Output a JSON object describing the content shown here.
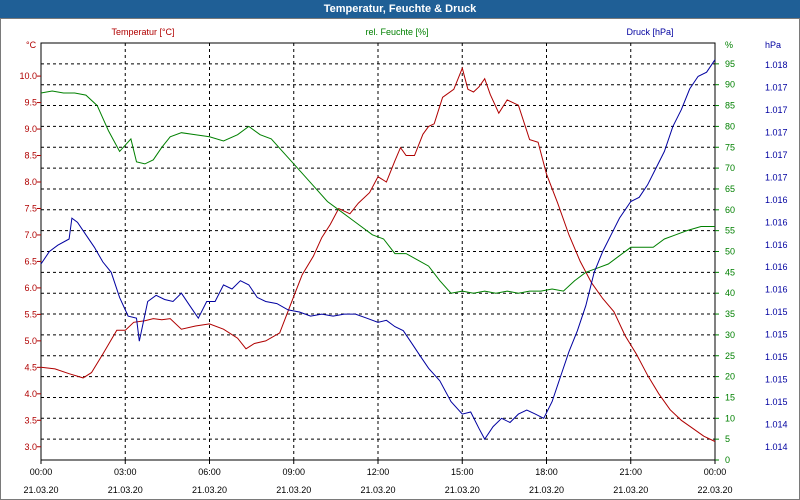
{
  "window": {
    "title": "Temperatur, Feuchte & Druck"
  },
  "chart_data": {
    "type": "line",
    "title": "Temperatur, Feuchte & Druck",
    "colors": {
      "temperature": "#b00000",
      "humidity": "#008000",
      "pressure": "#0000a0",
      "grid": "#000000"
    },
    "x_axis": {
      "type": "time",
      "range": [
        "21.03.20 00:00",
        "22.03.20 00:00"
      ],
      "ticks": [
        {
          "time": "00:00",
          "date": "21.03.20"
        },
        {
          "time": "03:00",
          "date": "21.03.20"
        },
        {
          "time": "06:00",
          "date": "21.03.20"
        },
        {
          "time": "09:00",
          "date": "21.03.20"
        },
        {
          "time": "12:00",
          "date": "21.03.20"
        },
        {
          "time": "15:00",
          "date": "21.03.20"
        },
        {
          "time": "18:00",
          "date": "21.03.20"
        },
        {
          "time": "21:00",
          "date": "21.03.20"
        },
        {
          "time": "00:00",
          "date": "22.03.20"
        }
      ]
    },
    "axes": {
      "temperature": {
        "label": "Temperatur [°C]",
        "unit_label": "°C",
        "ylim": [
          2.75,
          10.625
        ],
        "ticks": [
          "10.0",
          "9.5",
          "9.0",
          "8.5",
          "8.0",
          "7.5",
          "7.0",
          "6.5",
          "6.0",
          "5.5",
          "5.0",
          "4.5",
          "4.0",
          "3.5",
          "3.0"
        ],
        "tick_values": [
          10.0,
          9.5,
          9.0,
          8.5,
          8.0,
          7.5,
          7.0,
          6.5,
          6.0,
          5.5,
          5.0,
          4.5,
          4.0,
          3.5,
          3.0
        ]
      },
      "humidity": {
        "label": "rel. Feuchte [%]",
        "unit_label": "%",
        "ylim": [
          0,
          100
        ],
        "ticks": [
          "95",
          "90",
          "85",
          "80",
          "75",
          "70",
          "65",
          "60",
          "55",
          "50",
          "45",
          "40",
          "35",
          "30",
          "25",
          "20",
          "15",
          "10",
          "5",
          "0"
        ],
        "tick_values": [
          95,
          90,
          85,
          80,
          75,
          70,
          65,
          60,
          55,
          50,
          45,
          40,
          35,
          30,
          25,
          20,
          15,
          10,
          5,
          0
        ]
      },
      "pressure": {
        "label": "Druck [hPa]",
        "unit_label": "hPa",
        "ticks": [
          "1.018",
          "1.017",
          "1.017",
          "1.017",
          "1.017",
          "1.017",
          "1.016",
          "1.016",
          "1.016",
          "1.016",
          "1.016",
          "1.015",
          "1.015",
          "1.015",
          "1.015",
          "1.015",
          "1.014",
          "1.014"
        ]
      }
    },
    "series": [
      {
        "name": "Temperatur [°C]",
        "axis": "temperature",
        "color": "#b00000",
        "points": [
          [
            0,
            4.5
          ],
          [
            0.5,
            4.47
          ],
          [
            1.0,
            4.38
          ],
          [
            1.5,
            4.3
          ],
          [
            1.8,
            4.4
          ],
          [
            2.2,
            4.75
          ],
          [
            2.7,
            5.2
          ],
          [
            3.0,
            5.2
          ],
          [
            3.3,
            5.35
          ],
          [
            3.7,
            5.38
          ],
          [
            4.0,
            5.42
          ],
          [
            4.3,
            5.4
          ],
          [
            4.6,
            5.42
          ],
          [
            5.0,
            5.22
          ],
          [
            5.5,
            5.28
          ],
          [
            6.0,
            5.32
          ],
          [
            6.5,
            5.22
          ],
          [
            7.0,
            5.05
          ],
          [
            7.3,
            4.85
          ],
          [
            7.6,
            4.95
          ],
          [
            8.0,
            5.0
          ],
          [
            8.5,
            5.15
          ],
          [
            8.9,
            5.7
          ],
          [
            9.3,
            6.25
          ],
          [
            9.7,
            6.6
          ],
          [
            10.0,
            6.95
          ],
          [
            10.3,
            7.2
          ],
          [
            10.6,
            7.5
          ],
          [
            11.0,
            7.4
          ],
          [
            11.3,
            7.6
          ],
          [
            11.7,
            7.8
          ],
          [
            12.0,
            8.1
          ],
          [
            12.3,
            8.0
          ],
          [
            12.6,
            8.4
          ],
          [
            12.8,
            8.65
          ],
          [
            13.0,
            8.5
          ],
          [
            13.3,
            8.5
          ],
          [
            13.6,
            8.9
          ],
          [
            13.8,
            9.05
          ],
          [
            14.0,
            9.1
          ],
          [
            14.3,
            9.6
          ],
          [
            14.7,
            9.75
          ],
          [
            15.0,
            10.15
          ],
          [
            15.2,
            9.75
          ],
          [
            15.4,
            9.7
          ],
          [
            15.6,
            9.8
          ],
          [
            15.8,
            9.95
          ],
          [
            16.0,
            9.65
          ],
          [
            16.3,
            9.3
          ],
          [
            16.6,
            9.55
          ],
          [
            17.0,
            9.45
          ],
          [
            17.4,
            8.8
          ],
          [
            17.7,
            8.75
          ],
          [
            18.0,
            8.15
          ],
          [
            18.4,
            7.6
          ],
          [
            18.8,
            7.0
          ],
          [
            19.2,
            6.5
          ],
          [
            19.6,
            6.1
          ],
          [
            20.0,
            5.8
          ],
          [
            20.4,
            5.55
          ],
          [
            20.8,
            5.1
          ],
          [
            21.2,
            4.75
          ],
          [
            21.6,
            4.35
          ],
          [
            22.0,
            4.0
          ],
          [
            22.4,
            3.7
          ],
          [
            22.8,
            3.5
          ],
          [
            23.2,
            3.35
          ],
          [
            23.6,
            3.2
          ],
          [
            24.0,
            3.1
          ]
        ]
      },
      {
        "name": "rel. Feuchte [%]",
        "axis": "humidity",
        "color": "#008000",
        "points": [
          [
            0,
            88
          ],
          [
            0.4,
            88.5
          ],
          [
            0.8,
            88
          ],
          [
            1.2,
            88
          ],
          [
            1.6,
            87.5
          ],
          [
            2.0,
            85
          ],
          [
            2.4,
            79
          ],
          [
            2.8,
            74
          ],
          [
            3.2,
            77
          ],
          [
            3.4,
            71.5
          ],
          [
            3.7,
            71
          ],
          [
            4.0,
            72
          ],
          [
            4.3,
            75
          ],
          [
            4.6,
            77.5
          ],
          [
            5.0,
            78.5
          ],
          [
            5.5,
            78
          ],
          [
            6.0,
            77.5
          ],
          [
            6.5,
            76.5
          ],
          [
            7.0,
            78
          ],
          [
            7.4,
            80
          ],
          [
            7.8,
            78
          ],
          [
            8.2,
            77
          ],
          [
            8.6,
            74
          ],
          [
            9.0,
            71
          ],
          [
            9.4,
            68
          ],
          [
            9.8,
            65
          ],
          [
            10.2,
            62
          ],
          [
            10.6,
            60
          ],
          [
            11.0,
            58
          ],
          [
            11.4,
            56
          ],
          [
            11.8,
            54
          ],
          [
            12.2,
            53
          ],
          [
            12.6,
            49.5
          ],
          [
            13.0,
            49.5
          ],
          [
            13.4,
            48
          ],
          [
            13.8,
            46.5
          ],
          [
            14.2,
            43
          ],
          [
            14.6,
            40
          ],
          [
            15.0,
            40.5
          ],
          [
            15.4,
            40
          ],
          [
            15.8,
            40.5
          ],
          [
            16.2,
            40
          ],
          [
            16.6,
            40.5
          ],
          [
            17.0,
            40
          ],
          [
            17.4,
            40.5
          ],
          [
            17.8,
            40.5
          ],
          [
            18.2,
            41
          ],
          [
            18.6,
            40.5
          ],
          [
            19.0,
            43
          ],
          [
            19.4,
            45
          ],
          [
            19.8,
            46
          ],
          [
            20.2,
            47
          ],
          [
            20.6,
            49
          ],
          [
            21.0,
            51
          ],
          [
            21.4,
            51
          ],
          [
            21.8,
            51
          ],
          [
            22.2,
            53
          ],
          [
            22.6,
            54
          ],
          [
            23.0,
            55
          ],
          [
            23.5,
            56
          ],
          [
            24.0,
            56
          ]
        ]
      },
      {
        "name": "Druck [hPa]",
        "axis": "pressure",
        "color": "#0000a0",
        "points_rel": [
          [
            0,
            47
          ],
          [
            0.3,
            50
          ],
          [
            0.6,
            51.5
          ],
          [
            1.0,
            53
          ],
          [
            1.1,
            58
          ],
          [
            1.3,
            57
          ],
          [
            1.6,
            54
          ],
          [
            1.9,
            51
          ],
          [
            2.2,
            47.5
          ],
          [
            2.5,
            45
          ],
          [
            2.8,
            39
          ],
          [
            3.1,
            34.5
          ],
          [
            3.4,
            34
          ],
          [
            3.5,
            28.5
          ],
          [
            3.8,
            38
          ],
          [
            4.1,
            39.5
          ],
          [
            4.4,
            38.5
          ],
          [
            4.7,
            38
          ],
          [
            5.0,
            40
          ],
          [
            5.3,
            37
          ],
          [
            5.6,
            34
          ],
          [
            5.9,
            38
          ],
          [
            6.2,
            38
          ],
          [
            6.5,
            42
          ],
          [
            6.8,
            41
          ],
          [
            7.1,
            43
          ],
          [
            7.4,
            42
          ],
          [
            7.7,
            39
          ],
          [
            8.0,
            38
          ],
          [
            8.4,
            37.5
          ],
          [
            8.8,
            36
          ],
          [
            9.2,
            35.5
          ],
          [
            9.6,
            34.5
          ],
          [
            10.0,
            35
          ],
          [
            10.4,
            34.5
          ],
          [
            10.8,
            35
          ],
          [
            11.2,
            35
          ],
          [
            11.6,
            34
          ],
          [
            12.0,
            33
          ],
          [
            12.3,
            33.5
          ],
          [
            12.6,
            32
          ],
          [
            12.9,
            31
          ],
          [
            13.2,
            28
          ],
          [
            13.5,
            25
          ],
          [
            13.8,
            22
          ],
          [
            14.2,
            19
          ],
          [
            14.6,
            14
          ],
          [
            15.0,
            11
          ],
          [
            15.3,
            11.5
          ],
          [
            15.6,
            7.5
          ],
          [
            15.8,
            5
          ],
          [
            16.1,
            8
          ],
          [
            16.4,
            10
          ],
          [
            16.7,
            9
          ],
          [
            17.0,
            11
          ],
          [
            17.3,
            12
          ],
          [
            17.6,
            11
          ],
          [
            17.9,
            10
          ],
          [
            18.2,
            14
          ],
          [
            18.5,
            20
          ],
          [
            18.8,
            26
          ],
          [
            19.1,
            31
          ],
          [
            19.4,
            37
          ],
          [
            19.7,
            45
          ],
          [
            20.0,
            50
          ],
          [
            20.3,
            54
          ],
          [
            20.6,
            58
          ],
          [
            21.0,
            62
          ],
          [
            21.3,
            63
          ],
          [
            21.6,
            66
          ],
          [
            21.9,
            70
          ],
          [
            22.2,
            74
          ],
          [
            22.5,
            80
          ],
          [
            22.8,
            84
          ],
          [
            23.1,
            89
          ],
          [
            23.4,
            92
          ],
          [
            23.7,
            93
          ],
          [
            24.0,
            96
          ]
        ]
      }
    ]
  }
}
